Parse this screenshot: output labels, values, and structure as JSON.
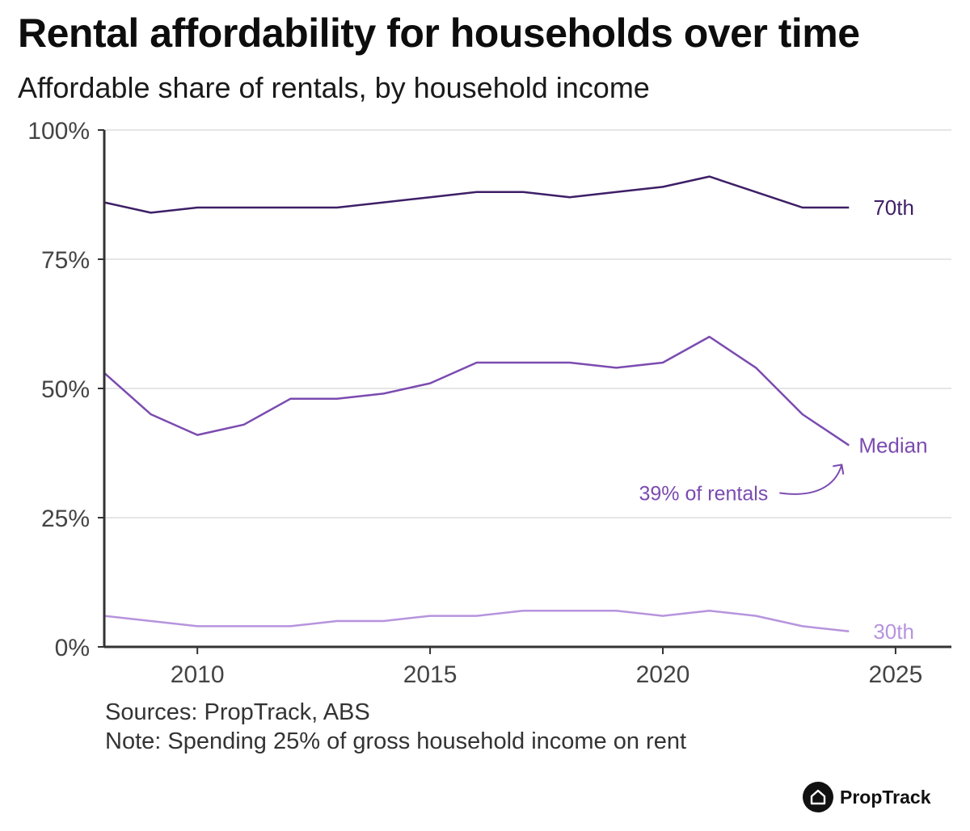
{
  "title": "Rental affordability for households over time",
  "subtitle": "Affordable share of rentals, by household income",
  "sources": "Sources: PropTrack, ABS",
  "note": "Note: Spending 25% of gross household income on rent",
  "brand": {
    "name": "PropTrack",
    "icon": "house-icon"
  },
  "colors": {
    "p70": "#3d1f66",
    "median": "#7b4bb0",
    "p30": "#b694dd",
    "grid": "#dddddd",
    "axis": "#333333"
  },
  "chart_data": {
    "type": "line",
    "x": [
      2008,
      2009,
      2010,
      2011,
      2012,
      2013,
      2014,
      2015,
      2016,
      2017,
      2018,
      2019,
      2020,
      2021,
      2022,
      2023,
      2024
    ],
    "series": [
      {
        "name": "70th",
        "values": [
          86,
          84,
          85,
          85,
          85,
          85,
          86,
          87,
          88,
          88,
          87,
          88,
          89,
          91,
          88,
          85,
          85
        ]
      },
      {
        "name": "Median",
        "values": [
          53,
          45,
          41,
          43,
          48,
          48,
          49,
          51,
          55,
          55,
          55,
          54,
          55,
          60,
          54,
          45,
          39
        ]
      },
      {
        "name": "30th",
        "values": [
          6,
          5,
          4,
          4,
          4,
          5,
          5,
          6,
          6,
          7,
          7,
          7,
          6,
          7,
          6,
          4,
          3
        ]
      }
    ],
    "xlim": [
      2008,
      2026.2
    ],
    "ylim": [
      0,
      100
    ],
    "x_ticks": [
      2010,
      2015,
      2020,
      2025
    ],
    "x_tick_labels": [
      "2010",
      "2015",
      "2020",
      "2025"
    ],
    "y_ticks": [
      0,
      25,
      50,
      75,
      100
    ],
    "y_tick_labels": [
      "0%",
      "25%",
      "50%",
      "75%",
      "100%"
    ],
    "grid": true,
    "annotation": {
      "text": "39% of rentals",
      "series": "Median",
      "x": 2024,
      "y": 39
    }
  }
}
